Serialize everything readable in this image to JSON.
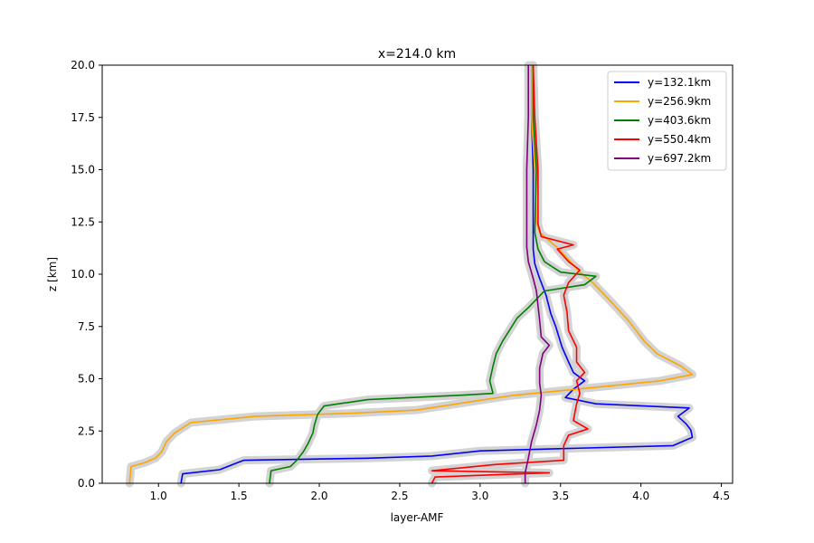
{
  "chart_data": {
    "type": "line",
    "title": "x=214.0 km",
    "xlabel": "layer-AMF",
    "ylabel": "z [km]",
    "xlim": [
      0.65,
      4.57
    ],
    "ylim": [
      0,
      20
    ],
    "xticks": [
      "1.0",
      "1.5",
      "2.0",
      "2.5",
      "3.0",
      "3.5",
      "4.0",
      "4.5"
    ],
    "yticks": [
      "0.0",
      "2.5",
      "5.0",
      "7.5",
      "10.0",
      "12.5",
      "15.0",
      "17.5",
      "20.0"
    ],
    "grid": false,
    "legend_position": "top-right",
    "uncertainty_band_color": "#d3d3d3",
    "series": [
      {
        "name": "y=132.1km",
        "color": "#0000ff",
        "points": [
          [
            1.14,
            0
          ],
          [
            1.15,
            0.45
          ],
          [
            1.38,
            0.65
          ],
          [
            1.48,
            0.95
          ],
          [
            1.53,
            1.1
          ],
          [
            2.3,
            1.2
          ],
          [
            2.7,
            1.3
          ],
          [
            3.0,
            1.55
          ],
          [
            4.2,
            1.8
          ],
          [
            4.32,
            2.2
          ],
          [
            4.31,
            2.55
          ],
          [
            4.28,
            2.85
          ],
          [
            4.23,
            3.2
          ],
          [
            4.3,
            3.6
          ],
          [
            3.72,
            3.8
          ],
          [
            3.53,
            4.1
          ],
          [
            3.58,
            4.5
          ],
          [
            3.65,
            4.9
          ],
          [
            3.58,
            5.3
          ],
          [
            3.55,
            5.8
          ],
          [
            3.51,
            6.5
          ],
          [
            3.47,
            7.5
          ],
          [
            3.44,
            8.1
          ],
          [
            3.41,
            9.0
          ],
          [
            3.37,
            9.8
          ],
          [
            3.34,
            10.5
          ],
          [
            3.33,
            11.2
          ],
          [
            3.33,
            12.5
          ],
          [
            3.33,
            15.0
          ],
          [
            3.32,
            17.5
          ],
          [
            3.32,
            20.0
          ]
        ]
      },
      {
        "name": "y=256.9km",
        "color": "#ffa500",
        "points": [
          [
            0.82,
            0
          ],
          [
            0.83,
            0.8
          ],
          [
            0.92,
            1.0
          ],
          [
            0.98,
            1.2
          ],
          [
            1.02,
            1.5
          ],
          [
            1.05,
            2.0
          ],
          [
            1.1,
            2.4
          ],
          [
            1.2,
            2.9
          ],
          [
            1.6,
            3.2
          ],
          [
            2.2,
            3.35
          ],
          [
            2.6,
            3.5
          ],
          [
            3.2,
            4.2
          ],
          [
            3.6,
            4.5
          ],
          [
            4.12,
            4.9
          ],
          [
            4.32,
            5.2
          ],
          [
            4.25,
            5.6
          ],
          [
            4.1,
            6.2
          ],
          [
            4.02,
            6.8
          ],
          [
            3.92,
            7.8
          ],
          [
            3.8,
            8.8
          ],
          [
            3.7,
            9.6
          ],
          [
            3.62,
            10.1
          ],
          [
            3.49,
            11.2
          ],
          [
            3.37,
            12.0
          ],
          [
            3.35,
            12.5
          ],
          [
            3.34,
            15.0
          ],
          [
            3.32,
            17.5
          ],
          [
            3.32,
            20.0
          ]
        ]
      },
      {
        "name": "y=403.6km",
        "color": "#008000",
        "points": [
          [
            1.69,
            0
          ],
          [
            1.7,
            0.6
          ],
          [
            1.82,
            0.8
          ],
          [
            1.86,
            1.1
          ],
          [
            1.9,
            1.5
          ],
          [
            1.93,
            1.9
          ],
          [
            1.96,
            2.4
          ],
          [
            1.97,
            2.8
          ],
          [
            1.99,
            3.3
          ],
          [
            2.03,
            3.7
          ],
          [
            2.3,
            4.0
          ],
          [
            2.85,
            4.2
          ],
          [
            3.08,
            4.3
          ],
          [
            3.06,
            4.9
          ],
          [
            3.08,
            5.6
          ],
          [
            3.1,
            6.2
          ],
          [
            3.14,
            6.8
          ],
          [
            3.23,
            7.9
          ],
          [
            3.3,
            8.4
          ],
          [
            3.4,
            9.2
          ],
          [
            3.65,
            9.5
          ],
          [
            3.72,
            9.9
          ],
          [
            3.5,
            10.1
          ],
          [
            3.4,
            10.6
          ],
          [
            3.36,
            11.2
          ],
          [
            3.34,
            12.0
          ],
          [
            3.35,
            15.0
          ],
          [
            3.33,
            17.5
          ],
          [
            3.33,
            20.0
          ]
        ]
      },
      {
        "name": "y=550.4km",
        "color": "#ff0000",
        "points": [
          [
            2.7,
            0
          ],
          [
            2.72,
            0.3
          ],
          [
            3.43,
            0.5
          ],
          [
            2.7,
            0.6
          ],
          [
            3.1,
            0.9
          ],
          [
            3.52,
            1.1
          ],
          [
            3.52,
            1.8
          ],
          [
            3.55,
            2.3
          ],
          [
            3.67,
            2.6
          ],
          [
            3.58,
            3.0
          ],
          [
            3.6,
            3.8
          ],
          [
            3.62,
            4.3
          ],
          [
            3.6,
            4.9
          ],
          [
            3.65,
            5.3
          ],
          [
            3.6,
            5.8
          ],
          [
            3.6,
            6.5
          ],
          [
            3.55,
            7.3
          ],
          [
            3.54,
            8.2
          ],
          [
            3.52,
            9.0
          ],
          [
            3.55,
            9.6
          ],
          [
            3.62,
            10.2
          ],
          [
            3.55,
            10.6
          ],
          [
            3.48,
            11.2
          ],
          [
            3.58,
            11.4
          ],
          [
            3.38,
            11.8
          ],
          [
            3.36,
            12.4
          ],
          [
            3.36,
            15.0
          ],
          [
            3.34,
            17.5
          ],
          [
            3.33,
            20.0
          ]
        ]
      },
      {
        "name": "y=697.2km",
        "color": "#800080",
        "points": [
          [
            3.28,
            0
          ],
          [
            3.28,
            0.5
          ],
          [
            3.3,
            1.2
          ],
          [
            3.32,
            2.0
          ],
          [
            3.35,
            2.8
          ],
          [
            3.37,
            3.5
          ],
          [
            3.38,
            4.2
          ],
          [
            3.37,
            4.8
          ],
          [
            3.37,
            5.5
          ],
          [
            3.39,
            6.2
          ],
          [
            3.43,
            6.6
          ],
          [
            3.38,
            7.0
          ],
          [
            3.37,
            7.8
          ],
          [
            3.36,
            8.5
          ],
          [
            3.35,
            9.2
          ],
          [
            3.33,
            9.8
          ],
          [
            3.3,
            10.6
          ],
          [
            3.29,
            11.3
          ],
          [
            3.29,
            12.0
          ],
          [
            3.29,
            15.0
          ],
          [
            3.3,
            17.5
          ],
          [
            3.3,
            20.0
          ]
        ]
      }
    ]
  }
}
